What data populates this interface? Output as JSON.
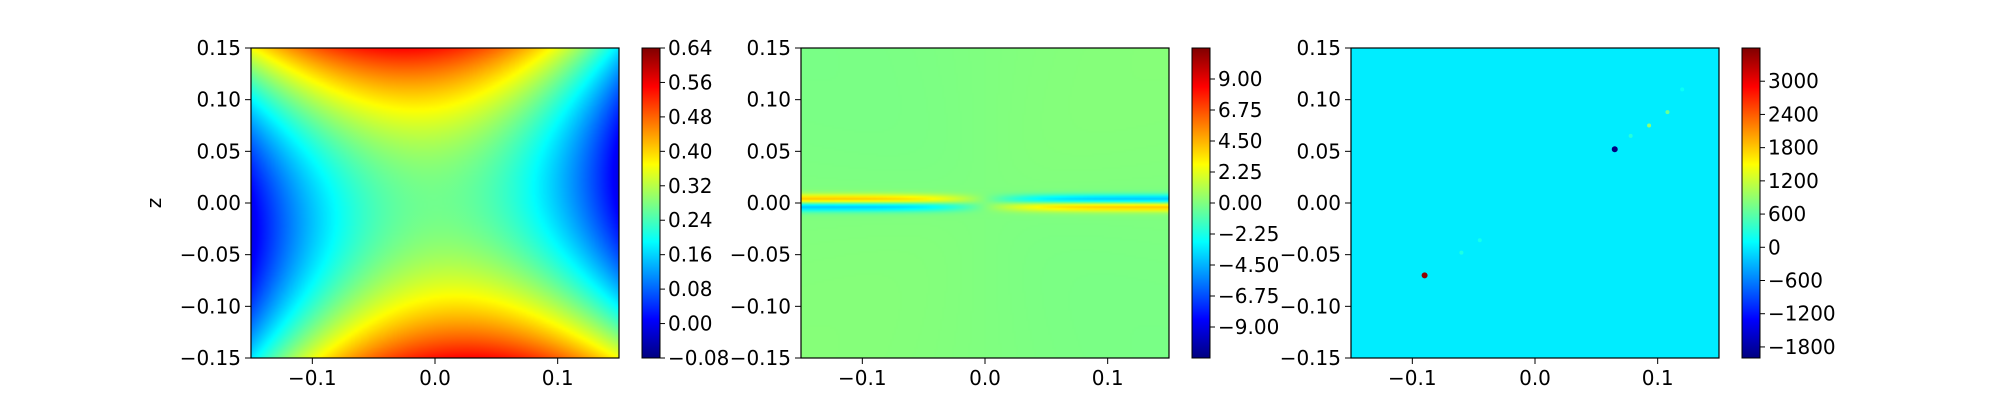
{
  "chart_data": [
    {
      "type": "heatmap",
      "title": "",
      "xlabel": "",
      "ylabel": "z",
      "xlim": [
        -0.15,
        0.15
      ],
      "ylim": [
        -0.15,
        0.15
      ],
      "x_ticks": [
        -0.1,
        0.0,
        0.1
      ],
      "x_tick_labels": [
        "−0.1",
        "0.0",
        "0.1"
      ],
      "y_ticks": [
        -0.15,
        -0.1,
        -0.05,
        0.0,
        0.05,
        0.1,
        0.15
      ],
      "y_tick_labels": [
        "−0.15",
        "−0.10",
        "−0.05",
        "0.00",
        "0.05",
        "0.10",
        "0.15"
      ],
      "colormap": "jet",
      "color_range": [
        -0.08,
        0.64
      ],
      "colorbar_ticks": [
        0.64,
        0.56,
        0.48,
        0.4,
        0.32,
        0.24,
        0.16,
        0.08,
        0.0,
        -0.08
      ],
      "colorbar_tick_labels": [
        "0.64",
        "0.56",
        "0.48",
        "0.40",
        "0.32",
        "0.24",
        "0.16",
        "0.08",
        "0.00",
        "−0.08"
      ],
      "field": "saddle: high at top-left and bottom-right, low at left-middle and right-middle"
    },
    {
      "type": "heatmap",
      "title": "",
      "xlabel": "",
      "ylabel": "",
      "xlim": [
        -0.15,
        0.15
      ],
      "ylim": [
        -0.15,
        0.15
      ],
      "x_ticks": [
        -0.1,
        0.0,
        0.1
      ],
      "x_tick_labels": [
        "−0.1",
        "0.0",
        "0.1"
      ],
      "y_ticks": [
        -0.15,
        -0.1,
        -0.05,
        0.0,
        0.05,
        0.1,
        0.15
      ],
      "y_tick_labels": [
        "−0.15",
        "−0.10",
        "−0.05",
        "0.00",
        "0.05",
        "0.10",
        "0.15"
      ],
      "colormap": "jet",
      "color_range": [
        -11.25,
        11.25
      ],
      "colorbar_ticks": [
        9.0,
        6.75,
        4.5,
        2.25,
        0.0,
        -2.25,
        -4.5,
        -6.75,
        -9.0
      ],
      "colorbar_tick_labels": [
        "9.00",
        "6.75",
        "4.50",
        "2.25",
        "0.00",
        "−2.25",
        "−4.50",
        "−6.75",
        "−9.00"
      ],
      "field": "near zero everywhere; thin dipole band along z=0, red/blue on left, blue/red on right"
    },
    {
      "type": "heatmap",
      "title": "",
      "xlabel": "",
      "ylabel": "",
      "xlim": [
        -0.15,
        0.15
      ],
      "ylim": [
        -0.15,
        0.15
      ],
      "x_ticks": [
        -0.1,
        0.0,
        0.1
      ],
      "x_tick_labels": [
        "−0.1",
        "0.0",
        "0.1"
      ],
      "y_ticks": [
        -0.15,
        -0.1,
        -0.05,
        0.0,
        0.05,
        0.1,
        0.15
      ],
      "y_tick_labels": [
        "−0.15",
        "−0.10",
        "−0.05",
        "0.00",
        "0.05",
        "0.10",
        "0.15"
      ],
      "colormap": "jet",
      "color_range": [
        -2000,
        3600
      ],
      "colorbar_ticks": [
        3000,
        2400,
        1800,
        1200,
        600,
        0,
        -600,
        -1200,
        -1800
      ],
      "colorbar_tick_labels": [
        "3000",
        "2400",
        "1800",
        "1200",
        "600",
        "0",
        "−600",
        "−1200",
        "−1800"
      ],
      "field": "uniform near zero; isolated spikes along diagonal",
      "spikes": [
        {
          "x": -0.09,
          "z": -0.07,
          "value": 3500
        },
        {
          "x": -0.06,
          "z": -0.048,
          "value": 250
        },
        {
          "x": -0.045,
          "z": -0.036,
          "value": 200
        },
        {
          "x": 0.065,
          "z": 0.052,
          "value": -2000
        },
        {
          "x": 0.078,
          "z": 0.065,
          "value": 300
        },
        {
          "x": 0.093,
          "z": 0.075,
          "value": 900
        },
        {
          "x": 0.108,
          "z": 0.088,
          "value": 700
        },
        {
          "x": 0.12,
          "z": 0.11,
          "value": 150
        }
      ]
    }
  ]
}
